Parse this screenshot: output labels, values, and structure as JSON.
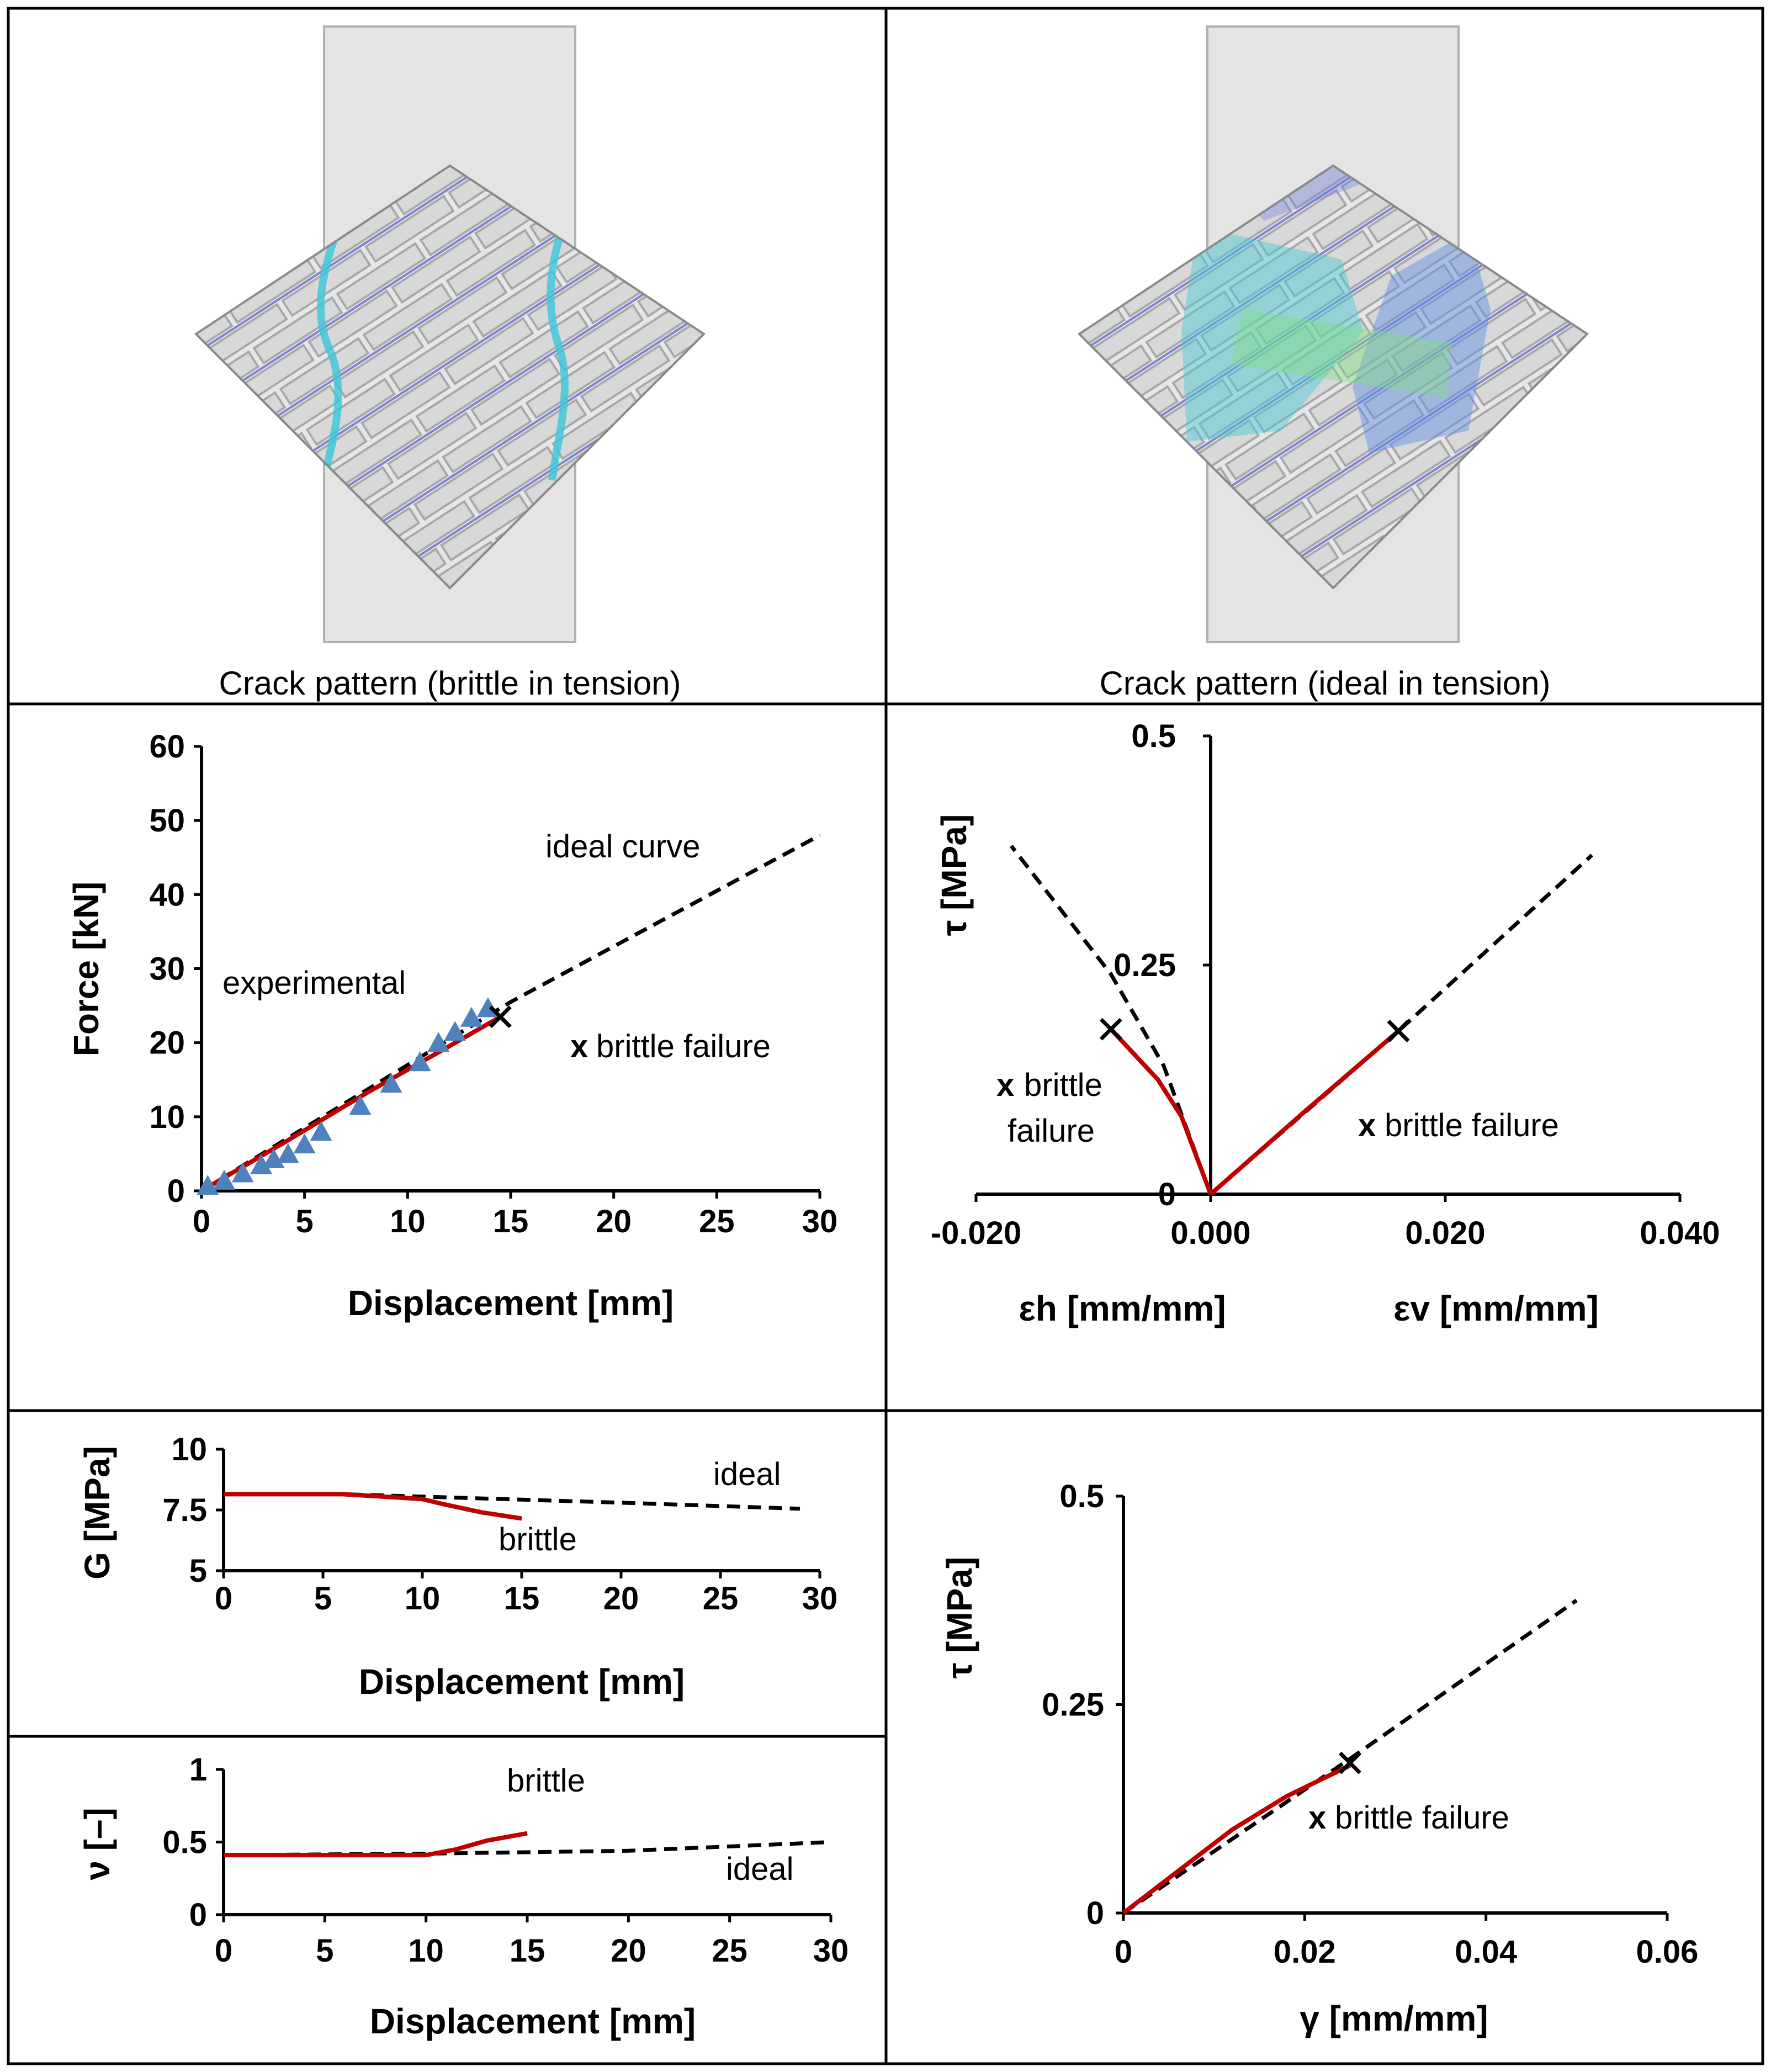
{
  "panels": {
    "crack_brittle": {
      "caption": "Crack pattern (brittle in tension)"
    },
    "crack_ideal": {
      "caption": "Crack pattern (ideal in tension)"
    }
  },
  "chart_data": [
    {
      "id": "force",
      "type": "line",
      "xlabel": "Displacement [mm]",
      "ylabel": "Force [kN]",
      "xlim": [
        0,
        30
      ],
      "ylim": [
        0,
        60
      ],
      "xticks": [
        "0",
        "5",
        "10",
        "15",
        "20",
        "25",
        "30"
      ],
      "yticks": [
        "0",
        "10",
        "20",
        "30",
        "40",
        "50",
        "60"
      ],
      "series": [
        {
          "name": "ideal curve",
          "style": "dashed",
          "color": "#000000",
          "x": [
            0,
            15,
            30
          ],
          "y": [
            0,
            25.5,
            48
          ]
        },
        {
          "name": "brittle",
          "style": "solid",
          "color": "#c00000",
          "x": [
            0,
            4,
            8,
            12,
            14.5
          ],
          "y": [
            0,
            6.5,
            13.2,
            19.5,
            23.5
          ]
        },
        {
          "name": "experimental",
          "style": "marker",
          "color": "#4f81bd",
          "x": [
            0.3,
            1.1,
            2.0,
            2.9,
            3.5,
            4.2,
            5.0,
            5.8,
            7.7,
            9.2,
            10.6,
            11.5,
            12.3,
            13.1,
            13.9
          ],
          "y": [
            0.5,
            1.2,
            2.2,
            3.3,
            4.1,
            4.8,
            6.1,
            7.8,
            11.3,
            14.3,
            17.2,
            19.8,
            21.3,
            23.2,
            24.5
          ]
        }
      ],
      "failure_marker": {
        "x": 14.5,
        "y": 23.5,
        "label": "x"
      },
      "annotations": [
        "ideal curve",
        "experimental",
        "x",
        "brittle failure"
      ]
    },
    {
      "id": "strain",
      "type": "line",
      "xlabel_left": "εh [mm/mm]",
      "xlabel_right": "εv [mm/mm]",
      "ylabel": "τ [MPa]",
      "xlim": [
        -0.02,
        0.04
      ],
      "ylim": [
        0,
        0.5
      ],
      "xticks": [
        "-0.020",
        "0.000",
        "0.020",
        "0.040"
      ],
      "yticks": [
        "0",
        "0.25",
        "0.5"
      ],
      "series": [
        {
          "name": "ideal εh",
          "style": "dashed",
          "color": "#000000",
          "x": [
            0,
            -0.004,
            -0.0085,
            -0.017
          ],
          "y": [
            0,
            0.14,
            0.24,
            0.38
          ]
        },
        {
          "name": "ideal εv",
          "style": "dashed",
          "color": "#000000",
          "x": [
            0,
            0.016,
            0.0325
          ],
          "y": [
            0,
            0.178,
            0.37
          ]
        },
        {
          "name": "brittle εh",
          "style": "solid",
          "color": "#c00000",
          "x": [
            0,
            -0.0025,
            -0.0045,
            -0.0085
          ],
          "y": [
            0,
            0.085,
            0.125,
            0.18
          ]
        },
        {
          "name": "brittle εv",
          "style": "solid",
          "color": "#c00000",
          "x": [
            0,
            0.008,
            0.016
          ],
          "y": [
            0,
            0.09,
            0.178
          ]
        }
      ],
      "failure_markers": [
        {
          "x": -0.0085,
          "y": 0.18
        },
        {
          "x": 0.016,
          "y": 0.178
        }
      ],
      "annotations": [
        "x",
        "brittle",
        "failure",
        "x",
        "brittle failure"
      ]
    },
    {
      "id": "shear_modulus",
      "type": "line",
      "xlabel": "Displacement [mm]",
      "ylabel": "G [MPa]",
      "xlim": [
        0,
        30
      ],
      "ylim": [
        5,
        10
      ],
      "xticks": [
        "0",
        "5",
        "10",
        "15",
        "20",
        "25",
        "30"
      ],
      "yticks": [
        "5",
        "7.5",
        "10"
      ],
      "series": [
        {
          "name": "ideal",
          "style": "dashed",
          "color": "#000000",
          "x": [
            0,
            6,
            10,
            20,
            29
          ],
          "y": [
            8.15,
            8.15,
            8.05,
            7.8,
            7.55
          ]
        },
        {
          "name": "brittle",
          "style": "solid",
          "color": "#c00000",
          "x": [
            0,
            6,
            8,
            10,
            11,
            13,
            15
          ],
          "y": [
            8.15,
            8.15,
            8.05,
            7.95,
            7.75,
            7.4,
            7.15
          ]
        }
      ],
      "annotations": [
        "ideal",
        "brittle"
      ]
    },
    {
      "id": "poisson",
      "type": "line",
      "xlabel": "Displacement [mm]",
      "ylabel": "ν [–]",
      "xlim": [
        0,
        30
      ],
      "ylim": [
        0,
        1
      ],
      "xticks": [
        "0",
        "5",
        "10",
        "15",
        "20",
        "25",
        "30"
      ],
      "yticks": [
        "0",
        "0.5",
        "1"
      ],
      "series": [
        {
          "name": "ideal",
          "style": "dashed",
          "color": "#000000",
          "x": [
            0,
            10,
            20,
            30
          ],
          "y": [
            0.41,
            0.42,
            0.44,
            0.5
          ]
        },
        {
          "name": "brittle",
          "style": "solid",
          "color": "#c00000",
          "x": [
            0,
            10,
            11.5,
            13,
            15
          ],
          "y": [
            0.41,
            0.41,
            0.45,
            0.51,
            0.56
          ]
        }
      ],
      "annotations": [
        "brittle",
        "ideal"
      ]
    },
    {
      "id": "shear_strain",
      "type": "line",
      "xlabel": "γ [mm/mm]",
      "ylabel": "τ [MPa]",
      "xlim": [
        0,
        0.06
      ],
      "ylim": [
        0,
        0.5
      ],
      "xticks": [
        "0",
        "0.02",
        "0.04",
        "0.06"
      ],
      "yticks": [
        "0",
        "0.25",
        "0.5"
      ],
      "series": [
        {
          "name": "ideal",
          "style": "dashed",
          "color": "#000000",
          "x": [
            0,
            0.025,
            0.05
          ],
          "y": [
            0,
            0.185,
            0.375
          ]
        },
        {
          "name": "brittle",
          "style": "solid",
          "color": "#c00000",
          "x": [
            0,
            0.012,
            0.018,
            0.025
          ],
          "y": [
            0,
            0.1,
            0.14,
            0.177
          ]
        }
      ],
      "failure_marker": {
        "x": 0.025,
        "y": 0.18
      },
      "annotations": [
        "x",
        "brittle failure"
      ]
    }
  ]
}
